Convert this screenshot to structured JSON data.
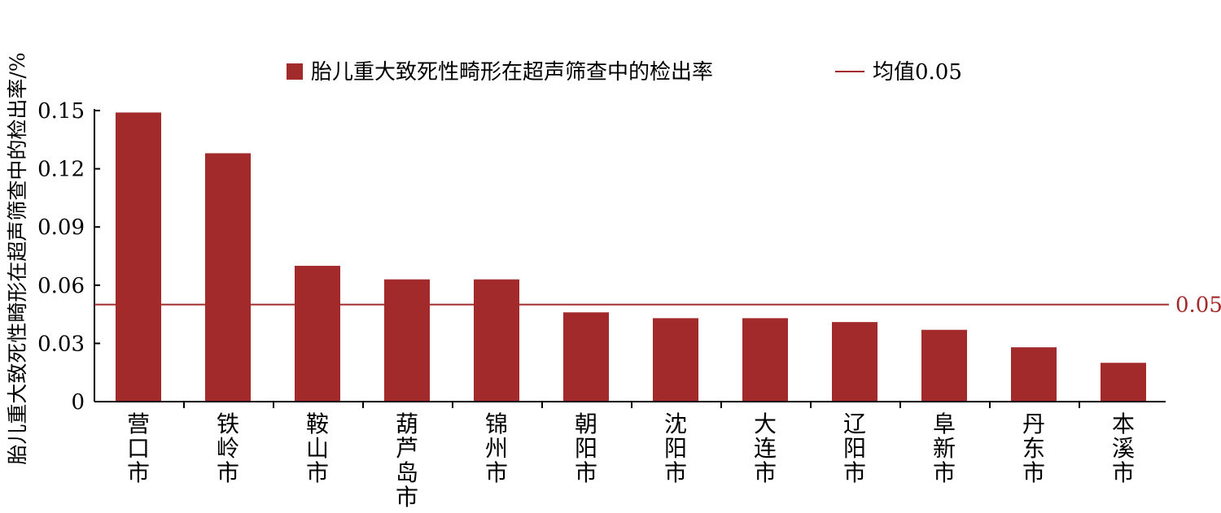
{
  "chart_data": {
    "type": "bar",
    "ylabel": "胎儿重大致死性畸形在超声筛查中的检出率/%",
    "categories": [
      "营口市",
      "铁岭市",
      "鞍山市",
      "葫芦岛市",
      "锦州市",
      "朝阳市",
      "沈阳市",
      "大连市",
      "辽阳市",
      "阜新市",
      "丹东市",
      "本溪市"
    ],
    "series": [
      {
        "name": "胎儿重大致死性畸形在超声筛查中的检出率",
        "values": [
          0.149,
          0.128,
          0.07,
          0.063,
          0.063,
          0.046,
          0.043,
          0.043,
          0.041,
          0.037,
          0.028,
          0.02
        ]
      }
    ],
    "reference_line": {
      "name": "均值0.05",
      "value": 0.05,
      "label": "0.05"
    },
    "ylim": [
      0,
      0.15
    ],
    "yticks": [
      "0",
      "0.03",
      "0.06",
      "0.09",
      "0.12",
      "0.15"
    ],
    "ytick_values": [
      0,
      0.03,
      0.06,
      0.09,
      0.12,
      0.15
    ],
    "legend_position": "top",
    "grid": false,
    "colors": {
      "bar": "#A32A2A",
      "line": "#A32A2A",
      "axis": "#000000"
    }
  }
}
